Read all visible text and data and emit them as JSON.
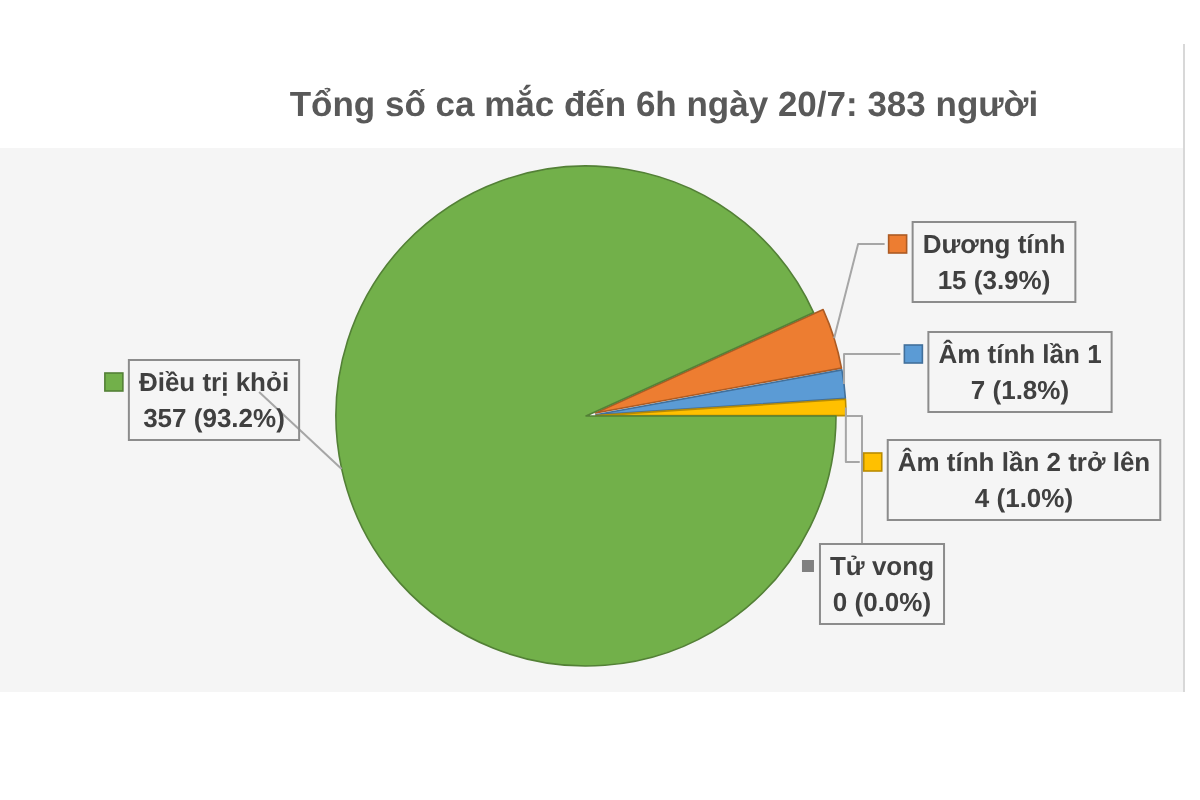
{
  "chart_data": {
    "type": "pie",
    "title": "Tổng số ca mắc đến 6h ngày 20/7: 383 người",
    "categories": [
      "Dương tính",
      "Âm tính lần 1",
      "Âm tính lần 2 trở lên",
      "Tử vong",
      "Điều trị khỏi"
    ],
    "values": [
      15,
      7,
      4,
      0,
      357
    ],
    "colors": [
      "#ed7d31",
      "#5b9bd5",
      "#ffc000",
      "#808080",
      "#72b04a"
    ],
    "value_labels": [
      "15 (3.9%)",
      "7 (1.8%)",
      "4 (1.0%)",
      "0 (0.0%)",
      "357 (93.2%)"
    ],
    "legend": "right"
  }
}
